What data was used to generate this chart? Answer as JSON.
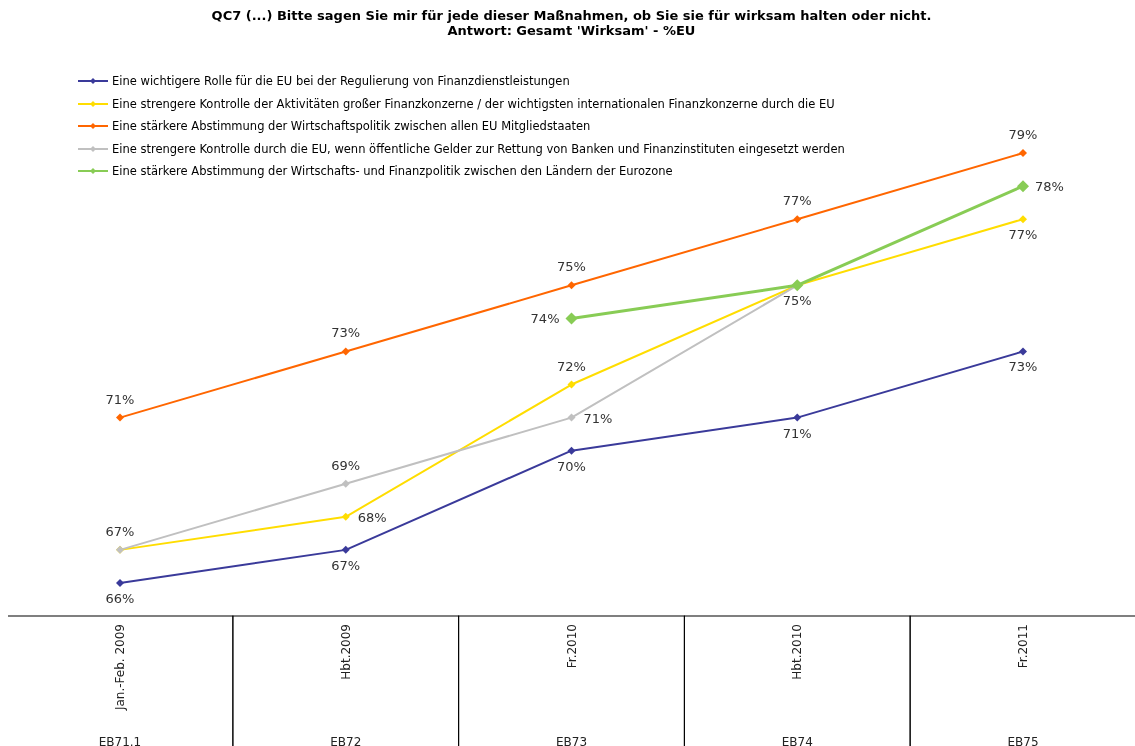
{
  "chart_data": {
    "type": "line",
    "title": "QC7 (...) Bitte sagen Sie mir für jede dieser Maßnahmen, ob Sie sie für wirksam halten oder nicht.",
    "subtitle": "Antwort: Gesamt 'Wirksam' - %EU",
    "categories": [
      "Jan.-Feb. 2009\nEB71.1",
      "Hbt.2009\nEB72",
      "Fr.2010\nEB73",
      "Hbt.2010\nEB74",
      "Fr.2011\nEB75"
    ],
    "marker": "diamond",
    "legend": "top left",
    "series": [
      {
        "name": "Eine wichtigere Rolle für die EU bei der Regulierung von Finanzdienstleistungen",
        "color": "#3a3a9a",
        "values": [
          66,
          67,
          70,
          71,
          73
        ],
        "value_labels": [
          "66%",
          "67%",
          "70%",
          "71%",
          "73%"
        ]
      },
      {
        "name": "Eine strengere Kontrolle der Aktivitäten großer Finanzkonzerne / der wichtigsten internationalen Finanzkonzerne durch die EU",
        "color": "#ffdd00",
        "values": [
          67,
          68,
          72,
          75,
          77
        ],
        "value_labels": [
          null,
          "68%",
          "72%",
          null,
          "77%"
        ]
      },
      {
        "name": "Eine stärkere Abstimmung der Wirtschaftspolitik zwischen allen EU Mitgliedstaaten",
        "color": "#ff6600",
        "values": [
          71,
          73,
          75,
          77,
          79
        ],
        "value_labels": [
          "71%",
          "73%",
          "75%",
          "77%",
          "79%"
        ]
      },
      {
        "name": "Eine strengere Kontrolle durch die EU, wenn öffentliche Gelder zur Rettung von Banken und Finanzinstituten eingesetzt werden",
        "color": "#c0c0c0",
        "values": [
          67,
          69,
          71,
          75,
          null
        ],
        "value_labels": [
          "67%",
          "69%",
          "71%",
          "75%",
          null
        ]
      },
      {
        "name": "Eine stärkere Abstimmung der Wirtschafts- und Finanzpolitik zwischen den Ländern der Eurozone",
        "color": "#88cc55",
        "values": [
          null,
          null,
          74,
          75,
          78
        ],
        "value_labels": [
          null,
          null,
          "74%",
          null,
          "78%"
        ]
      }
    ]
  }
}
